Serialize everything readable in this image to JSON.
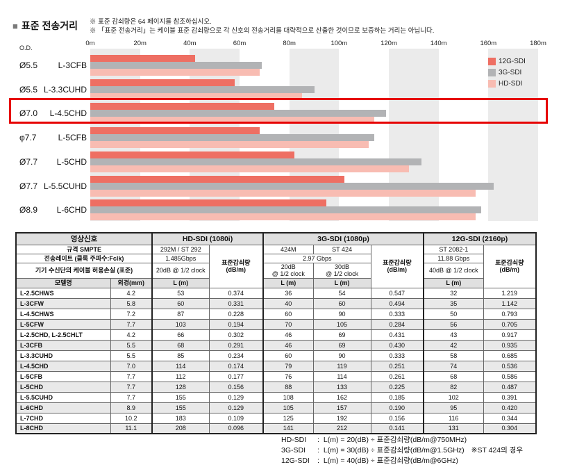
{
  "header": {
    "bullet": "■",
    "title": "표준 전송거리",
    "notes": [
      "※ 표준 감쇠량은 64 페이지를 참조하십시오.",
      "※ 「표준 전송거리」는 케이블 표준 감쇠량으로 각 신호의 전송거리를 대략적으로 산출한 것이므로 보증하는 거리는 아닙니다."
    ]
  },
  "chart_data": {
    "type": "bar",
    "orientation": "horizontal",
    "title": "표준 전송거리",
    "xlabel": "distance",
    "xlim": [
      0,
      180
    ],
    "x_ticks": [
      "0m",
      "20m",
      "40m",
      "60m",
      "80m",
      "100m",
      "120m",
      "140m",
      "160m",
      "180m"
    ],
    "grid": "alternating 20m vertical background bands",
    "band_color": "#ebebeb",
    "od_header": "O.D.",
    "legend_position": "top-right",
    "series_names": [
      "12G-SDI",
      "3G-SDI",
      "HD-SDI"
    ],
    "series_colors": [
      "#ee6f63",
      "#b2b3b5",
      "#f8bcb2"
    ],
    "highlight_color": "#e60000",
    "categories": [
      {
        "od": "Ø5.5",
        "model": "L-3CFB",
        "values": [
          42,
          69,
          68
        ],
        "highlighted": false
      },
      {
        "od": "Ø5.5",
        "model": "L-3.3CUHD",
        "values": [
          58,
          90,
          85
        ],
        "highlighted": false
      },
      {
        "od": "Ø7.0",
        "model": "L-4.5CHD",
        "values": [
          74,
          119,
          114
        ],
        "highlighted": true
      },
      {
        "od": "φ7.7",
        "model": "L-5CFB",
        "values": [
          68,
          114,
          112
        ],
        "highlighted": false
      },
      {
        "od": "Ø7.7",
        "model": "L-5CHD",
        "values": [
          82,
          133,
          128
        ],
        "highlighted": false
      },
      {
        "od": "Ø7.7",
        "model": "L-5.5CUHD",
        "values": [
          102,
          162,
          155
        ],
        "highlighted": false
      },
      {
        "od": "Ø8.9",
        "model": "L-6CHD",
        "values": [
          95,
          157,
          155
        ],
        "highlighted": false
      }
    ]
  },
  "table": {
    "groups": {
      "signal": "영상신호",
      "hd": "HD-SDI (1080i)",
      "g3": "3G-SDI (1080p)",
      "g12": "12G-SDI (2160p)"
    },
    "specs": {
      "smpte_label": "규격 SMPTE",
      "hd_smpte": "292M / ST 292",
      "g3_smpte_a": "424M",
      "g3_smpte_b": "ST 424",
      "g12_smpte": "ST 2082-1",
      "rate_label": "전송레이트 (클록 주파수:Fclk)",
      "hd_rate": "1.485Gbps",
      "g3_rate": "2.97 Gbps",
      "g12_rate": "11.88 Gbps",
      "loss_label": "기기 수신단의 케이블 허용손실 (표준)",
      "hd_loss": "20dB @ 1/2 clock",
      "g3_loss_a_line1": "20dB",
      "g3_loss_a_line2": "@ 1/2 clock",
      "g3_loss_b_line1": "30dB",
      "g3_loss_b_line2": "@ 1/2 clock",
      "g12_loss": "40dB @ 1/2 clock",
      "atten_line1": "표준감쇠량",
      "atten_line2": "(dB/m)"
    },
    "columns": {
      "model": "모델명",
      "od": "외경(mm)",
      "length": "L (m)"
    },
    "rows": [
      [
        "L-2.5CHWS",
        "4.2",
        "53",
        "0.374",
        "36",
        "54",
        "0.547",
        "32",
        "1.219"
      ],
      [
        "L-3CFW",
        "5.8",
        "60",
        "0.331",
        "40",
        "60",
        "0.494",
        "35",
        "1.142"
      ],
      [
        "L-4.5CHWS",
        "7.2",
        "87",
        "0.228",
        "60",
        "90",
        "0.333",
        "50",
        "0.793"
      ],
      [
        "L-5CFW",
        "7.7",
        "103",
        "0.194",
        "70",
        "105",
        "0.284",
        "56",
        "0.705"
      ],
      [
        "L-2.5CHD, L-2.5CHLT",
        "4.2",
        "66",
        "0.302",
        "46",
        "69",
        "0.431",
        "43",
        "0.917"
      ],
      [
        "L-3CFB",
        "5.5",
        "68",
        "0.291",
        "46",
        "69",
        "0.430",
        "42",
        "0.935"
      ],
      [
        "L-3.3CUHD",
        "5.5",
        "85",
        "0.234",
        "60",
        "90",
        "0.333",
        "58",
        "0.685"
      ],
      [
        "L-4.5CHD",
        "7.0",
        "114",
        "0.174",
        "79",
        "119",
        "0.251",
        "74",
        "0.536"
      ],
      [
        "L-5CFB",
        "7.7",
        "112",
        "0.177",
        "76",
        "114",
        "0.261",
        "68",
        "0.586"
      ],
      [
        "L-5CHD",
        "7.7",
        "128",
        "0.156",
        "88",
        "133",
        "0.225",
        "82",
        "0.487"
      ],
      [
        "L-5.5CUHD",
        "7.7",
        "155",
        "0.129",
        "108",
        "162",
        "0.185",
        "102",
        "0.391"
      ],
      [
        "L-6CHD",
        "8.9",
        "155",
        "0.129",
        "105",
        "157",
        "0.190",
        "95",
        "0.420"
      ],
      [
        "L-7CHD",
        "10.2",
        "183",
        "0.109",
        "125",
        "192",
        "0.156",
        "116",
        "0.344"
      ],
      [
        "L-8CHD",
        "11.1",
        "208",
        "0.096",
        "141",
        "212",
        "0.141",
        "131",
        "0.304"
      ]
    ]
  },
  "formulas": [
    {
      "signal": "HD-SDI",
      "formula": "L(m) = 20(dB) ÷ 표준감쇠량(dB/m@750MHz)",
      "note": ""
    },
    {
      "signal": "3G-SDI",
      "formula": "L(m) = 30(dB) ÷ 표준감쇠량(dB/m@1.5GHz)",
      "note": "※ST 424의 경우"
    },
    {
      "signal": "12G-SDI",
      "formula": "L(m) = 40(dB) ÷ 표준감쇠량(dB/m@6GHz)",
      "note": ""
    }
  ]
}
